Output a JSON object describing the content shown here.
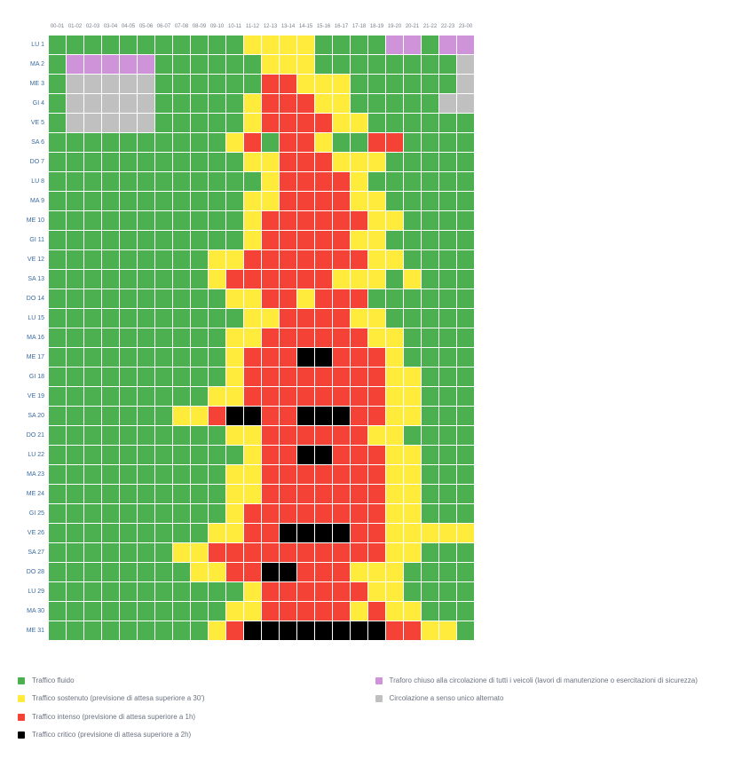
{
  "chart": {
    "type": "heatmap",
    "background_color": "#ffffff",
    "cell_gap_color": "#ffffff",
    "cell_size": 19,
    "colors": {
      "G": "#4caf50",
      "Y": "#ffeb3b",
      "R": "#f44336",
      "K": "#000000",
      "P": "#ce93d8",
      "S": "#c0c0c0"
    },
    "hours": [
      "00-01",
      "01-02",
      "02-03",
      "03-04",
      "04-05",
      "05-06",
      "06-07",
      "07-08",
      "08-09",
      "09-10",
      "10-11",
      "11-12",
      "12-13",
      "13-14",
      "14-15",
      "15-16",
      "16-17",
      "17-18",
      "18-19",
      "19-20",
      "20-21",
      "21-22",
      "22-23",
      "23-00"
    ],
    "days": [
      "LU 1",
      "MA 2",
      "ME 3",
      "GI 4",
      "VE 5",
      "SA 6",
      "DO 7",
      "LU 8",
      "MA 9",
      "ME 10",
      "GI 11",
      "VE 12",
      "SA 13",
      "DO 14",
      "LU 15",
      "MA 16",
      "ME 17",
      "GI 18",
      "VE 19",
      "SA 20",
      "DO 21",
      "LU 22",
      "MA 23",
      "ME 24",
      "GI 25",
      "VE 26",
      "SA 27",
      "DO 28",
      "LU 29",
      "MA 30",
      "ME 31"
    ],
    "grid": [
      "GGGGGGGGGGGYYYYGGGGPPGPP",
      "GPPPPPGGGGGGYYYGGGGGGGGS",
      "GSSSSSGGGGGGRRYYYGGGGGGS",
      "GSSSSSGGGGGYRRRYYGGGGGSS",
      "GSSSSSGGGGGYRRRRYYGGGGGG",
      "GGGGGGGGGGYRGRRYGGRRGGGG",
      "GGGGGGGGGGGYYRRRYYYGGGGG",
      "GGGGGGGGGGGGYRRRRYGGGGGG",
      "GGGGGGGGGGGYYRRRRYYGGGGG",
      "GGGGGGGGGGGYRRRRRRYYGGGG",
      "GGGGGGGGGGGYRRRRRYYGGGGG",
      "GGGGGGGGGYYRRRRRRRYYGGGG",
      "GGGGGGGGGYRRRRRRYYYGYGGG",
      "GGGGGGGGGGYYRRYRRRGGGGGG",
      "GGGGGGGGGGGYYRRRRYYGGGGG",
      "GGGGGGGGGGYYRRRRRRYYGGGG",
      "GGGGGGGGGGYRRRKKRRRYGGGG",
      "GGGGGGGGGGYRRRRRRRRYYGGG",
      "GGGGGGGGGYYRRRRRRRRYYGGG",
      "GGGGGGGYYRKKRRKKKRRYYGGG",
      "GGGGGGGGGGYYRRRRRRYYGGGG",
      "GGGGGGGGGGGYRRKKRRRYYGGG",
      "GGGGGGGGGGYYRRRRRRRYYGGG",
      "GGGGGGGGGGYYRRRRRRRYYGGG",
      "GGGGGGGGGGYRRRRRRRRYYGGG",
      "GGGGGGGGGYYRRKKKKRRYYYYY",
      "GGGGGGGYYRRRRRRRRRRYYGGG",
      "GGGGGGGGYYRRKKRRRYYYGGGG",
      "GGGGGGGGGGGYRRRRRRYYGGGG",
      "GGGGGGGGGGYYRRRRRYRYYGGG",
      "GGGGGGGGGYRKKKKKKKKRRYYG"
    ]
  },
  "legend": {
    "left": [
      {
        "key": "G",
        "text": "Traffico fluido"
      },
      {
        "key": "Y",
        "text": "Traffico sostenuto (previsione di attesa superiore a 30')"
      },
      {
        "key": "R",
        "text": "Traffico intenso (previsione di attesa superiore a 1h)"
      },
      {
        "key": "K",
        "text": "Traffico critico (previsione di attesa superiore a 2h)"
      }
    ],
    "right": [
      {
        "key": "P",
        "text": "Traforo chiuso alla circolazione di tutti i veicoli (lavori di manutenzione o esercitazioni di sicurezza)"
      },
      {
        "key": "S",
        "text": "Circolazione a senso unico alternato"
      }
    ]
  }
}
